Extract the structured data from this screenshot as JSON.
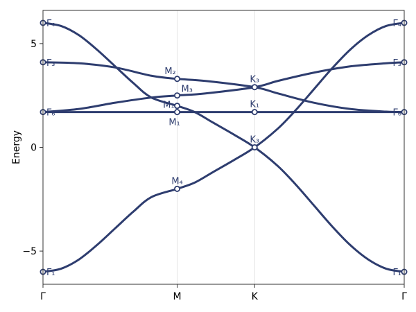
{
  "chart_data": {
    "type": "line",
    "title": "",
    "xlabel": "",
    "ylabel": "Energy",
    "ylim": [
      -6.6,
      6.6
    ],
    "xlim": [
      0,
      1
    ],
    "grid": "vertical lines at high-symmetry points",
    "line_color": "#2e3d6f",
    "grid_color": "#e3e3e3",
    "x_ticks": [
      {
        "x": 0,
        "label": "Γ"
      },
      {
        "x": 0.3715,
        "label": "M"
      },
      {
        "x": 0.5859,
        "label": "K"
      },
      {
        "x": 1,
        "label": "Γ"
      }
    ],
    "y_ticks": [
      {
        "value": -5,
        "label": "−5"
      },
      {
        "value": 0,
        "label": "0"
      },
      {
        "value": 5,
        "label": "5"
      }
    ],
    "series": [
      {
        "x": [
          0,
          0.05,
          0.1,
          0.15,
          0.2,
          0.25,
          0.3,
          0.3715,
          0.42,
          0.47,
          0.53,
          0.5859,
          0.65,
          0.7,
          0.75,
          0.8,
          0.85,
          0.9,
          0.95,
          1
        ],
        "y": [
          6.0,
          5.85,
          5.4,
          4.7,
          3.9,
          3.1,
          2.4,
          2.0,
          1.7,
          1.2,
          0.6,
          0.0,
          -0.9,
          -1.8,
          -2.8,
          -3.8,
          -4.7,
          -5.4,
          -5.85,
          -6.0
        ]
      },
      {
        "x": [
          0,
          0.05,
          0.1,
          0.15,
          0.2,
          0.25,
          0.3,
          0.3715,
          0.42,
          0.47,
          0.53,
          0.5859,
          0.65,
          0.7,
          0.75,
          0.8,
          0.85,
          0.9,
          0.95,
          1
        ],
        "y": [
          -6.0,
          -5.85,
          -5.4,
          -4.7,
          -3.9,
          -3.1,
          -2.4,
          -2.0,
          -1.7,
          -1.2,
          -0.6,
          0.0,
          0.9,
          1.8,
          2.8,
          3.8,
          4.7,
          5.4,
          5.85,
          6.0
        ]
      },
      {
        "x": [
          0,
          0.1,
          0.2,
          0.3,
          0.3715,
          0.45,
          0.5859,
          0.65,
          0.75,
          0.85,
          0.95,
          1
        ],
        "y": [
          4.1,
          4.05,
          3.85,
          3.45,
          3.3,
          3.2,
          2.9,
          2.6,
          2.15,
          1.85,
          1.72,
          1.7
        ]
      },
      {
        "x": [
          0,
          0.1,
          0.2,
          0.3,
          0.3715,
          0.45,
          0.5859,
          0.65,
          0.75,
          0.85,
          0.95,
          1
        ],
        "y": [
          1.7,
          1.85,
          2.15,
          2.4,
          2.5,
          2.6,
          2.9,
          3.2,
          3.6,
          3.9,
          4.05,
          4.1
        ]
      },
      {
        "x": [
          0,
          1
        ],
        "y": [
          1.7,
          1.7
        ]
      }
    ],
    "points": [
      {
        "x": 0,
        "y": 6.0,
        "label": "Γ₄",
        "place": "edge"
      },
      {
        "x": 0,
        "y": 4.1,
        "label": "Γ₃",
        "place": "edge"
      },
      {
        "x": 0,
        "y": 1.7,
        "label": "Γ₆",
        "place": "edge"
      },
      {
        "x": 0,
        "y": -6.0,
        "label": "Γ₁",
        "place": "edge"
      },
      {
        "x": 1,
        "y": 6.0,
        "label": "Γ₄",
        "place": "edge"
      },
      {
        "x": 1,
        "y": 4.1,
        "label": "Γ₃",
        "place": "edge"
      },
      {
        "x": 1,
        "y": 1.7,
        "label": "Γ₆",
        "place": "edge"
      },
      {
        "x": 1,
        "y": -6.0,
        "label": "Γ₁",
        "place": "edge"
      },
      {
        "x": 0.3715,
        "y": 3.3,
        "label": "M₂",
        "place": "above-left"
      },
      {
        "x": 0.3715,
        "y": 2.5,
        "label": "M₃",
        "place": "right"
      },
      {
        "x": 0.3715,
        "y": 2.0,
        "label": "M₁",
        "place": "left"
      },
      {
        "x": 0.3715,
        "y": 1.7,
        "label": "M₁",
        "place": "below-left"
      },
      {
        "x": 0.3715,
        "y": -2.0,
        "label": "M₄",
        "place": "above"
      },
      {
        "x": 0.5859,
        "y": 2.9,
        "label": "K₃",
        "place": "above"
      },
      {
        "x": 0.5859,
        "y": 1.7,
        "label": "K₁",
        "place": "above"
      },
      {
        "x": 0.5859,
        "y": 0.0,
        "label": "K₃",
        "place": "above"
      }
    ]
  }
}
